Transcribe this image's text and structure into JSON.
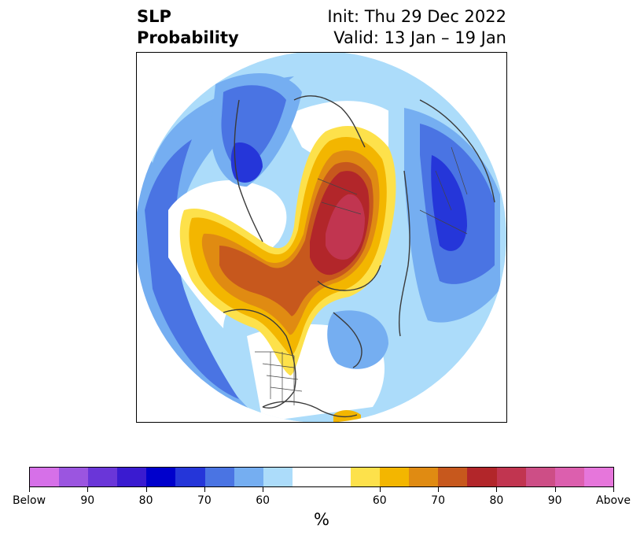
{
  "title": {
    "left_line1": "SLP",
    "left_line2": "Probability",
    "right_line1": "Init: Thu 29 Dec 2022",
    "right_line2": "Valid: 13 Jan – 19 Jan"
  },
  "map": {
    "projection": "north-polar-stereographic",
    "background": "#ffffff"
  },
  "colorbar": {
    "unit": "%",
    "colors": [
      "#d670e8",
      "#9b55e0",
      "#6a36d8",
      "#3a1bd0",
      "#0000cc",
      "#2536d9",
      "#4a74e3",
      "#75aef1",
      "#acdcfa",
      "#ffffff",
      "#ffffff",
      "#fde14b",
      "#f3b600",
      "#e08b12",
      "#c7581d",
      "#b2262a",
      "#c13550",
      "#cd4e86",
      "#dc5fae",
      "#e676db"
    ],
    "ticks": [
      {
        "label": "Below",
        "frac": 0.0
      },
      {
        "label": "90",
        "frac": 0.1
      },
      {
        "label": "80",
        "frac": 0.2
      },
      {
        "label": "70",
        "frac": 0.3
      },
      {
        "label": "60",
        "frac": 0.4
      },
      {
        "label": "60",
        "frac": 0.6
      },
      {
        "label": "70",
        "frac": 0.7
      },
      {
        "label": "80",
        "frac": 0.8
      },
      {
        "label": "90",
        "frac": 0.9
      },
      {
        "label": "Above",
        "frac": 1.0
      }
    ]
  }
}
